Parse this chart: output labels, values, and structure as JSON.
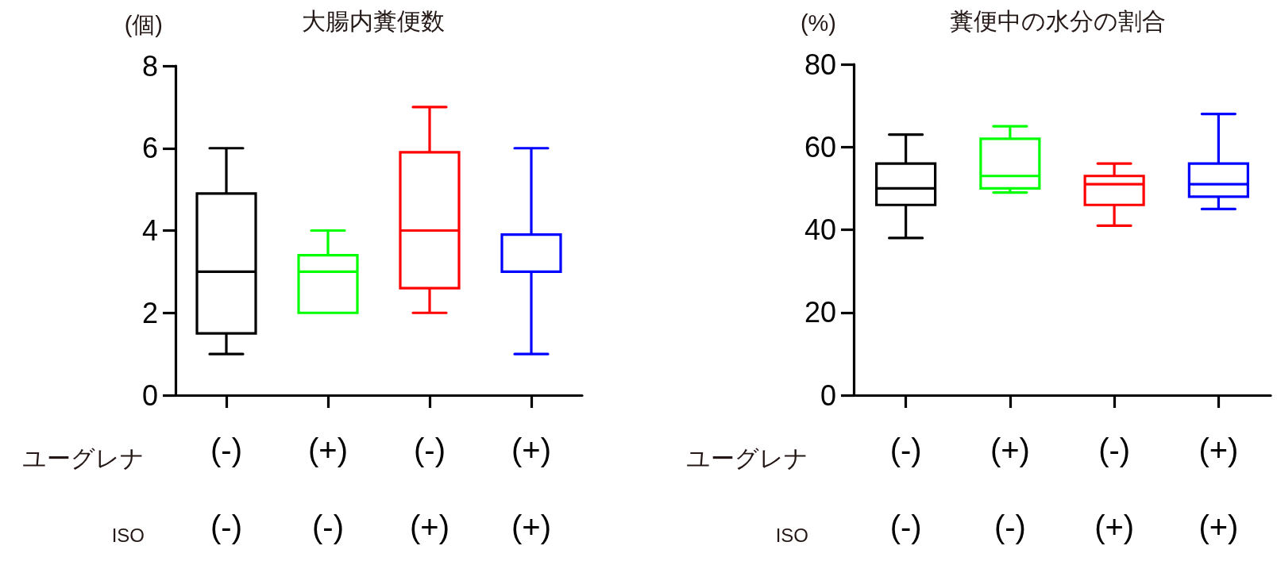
{
  "chart_data": [
    {
      "type": "box",
      "title": "大腸内糞便数",
      "ylabel": "(個)",
      "categories": [
        "(-)\n(-)",
        "(+)\n(-)",
        "(-)\n(+)",
        "(+)\n(+)"
      ],
      "annotations": [
        "ユーグレナ",
        "ISO"
      ],
      "boxes": [
        {
          "low": 1,
          "q1": 1.5,
          "median": 3,
          "q3": 4.9,
          "high": 6
        },
        {
          "low": 2,
          "q1": 2,
          "median": 3,
          "q3": 3.4,
          "high": 4
        },
        {
          "low": 2,
          "q1": 2.6,
          "median": 4,
          "q3": 5.9,
          "high": 7
        },
        {
          "low": 1,
          "q1": 3,
          "median": 3,
          "q3": 3.9,
          "high": 6
        }
      ],
      "colors": [
        "#000000",
        "#00ff00",
        "#ff0000",
        "#0000ff"
      ],
      "ylim": [
        0,
        8
      ],
      "yticks": [
        0,
        2,
        4,
        6,
        8
      ]
    },
    {
      "type": "box",
      "title": "糞便中の水分の割合",
      "ylabel": "(%)",
      "categories": [
        "(-)\n(-)",
        "(+)\n(-)",
        "(-)\n(+)",
        "(+)\n(+)"
      ],
      "annotations": [
        "ユーグレナ",
        "ISO"
      ],
      "boxes": [
        {
          "low": 38,
          "q1": 46,
          "median": 50,
          "q3": 56,
          "high": 63
        },
        {
          "low": 49,
          "q1": 50,
          "median": 53,
          "q3": 62,
          "high": 65
        },
        {
          "low": 41,
          "q1": 46,
          "median": 51,
          "q3": 53,
          "high": 56
        },
        {
          "low": 45,
          "q1": 48,
          "median": 51,
          "q3": 56,
          "high": 68
        }
      ],
      "colors": [
        "#000000",
        "#00ff00",
        "#ff0000",
        "#0000ff"
      ],
      "ylim": [
        0,
        80
      ],
      "yticks": [
        0,
        20,
        40,
        60,
        80
      ]
    }
  ]
}
